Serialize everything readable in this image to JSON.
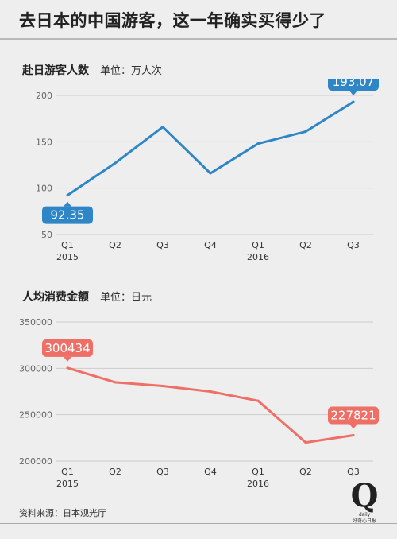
{
  "title": "去日本的中国游客，这一年确实买得少了",
  "footer": {
    "source": "资料来源：日本观光厅",
    "logo_mark": "Q",
    "logo_sub": "daily",
    "logo_tagline": "好奇心日报"
  },
  "colors": {
    "blue": "#2f86c6",
    "red": "#ee6f66",
    "grid": "#cccccc",
    "axis_text": "#666666"
  },
  "chart_data": [
    {
      "type": "line",
      "title": "赴日游客人数",
      "unit": "单位：万人次",
      "categories": [
        "Q1",
        "Q2",
        "Q3",
        "Q4",
        "Q1",
        "Q2",
        "Q3"
      ],
      "year_labels": [
        "2015",
        "",
        "",
        "",
        "2016",
        "",
        ""
      ],
      "values": [
        92.35,
        127,
        166,
        116,
        148,
        161,
        193.07
      ],
      "ylim": [
        50,
        200
      ],
      "yticks": [
        50,
        100,
        150,
        200
      ],
      "grid": true,
      "annotations": [
        {
          "index": 0,
          "label": "92.35",
          "position": "below"
        },
        {
          "index": 6,
          "label": "193.07",
          "position": "above"
        }
      ]
    },
    {
      "type": "line",
      "title": "人均消费金额",
      "unit": "单位：日元",
      "categories": [
        "Q1",
        "Q2",
        "Q3",
        "Q4",
        "Q1",
        "Q2",
        "Q3"
      ],
      "year_labels": [
        "2015",
        "",
        "",
        "",
        "2016",
        "",
        ""
      ],
      "values": [
        300434,
        285000,
        281000,
        275000,
        265000,
        220000,
        227821
      ],
      "ylim": [
        200000,
        350000
      ],
      "yticks": [
        200000,
        250000,
        300000,
        350000
      ],
      "grid": true,
      "annotations": [
        {
          "index": 0,
          "label": "300434",
          "position": "above"
        },
        {
          "index": 6,
          "label": "227821",
          "position": "above"
        }
      ]
    }
  ]
}
